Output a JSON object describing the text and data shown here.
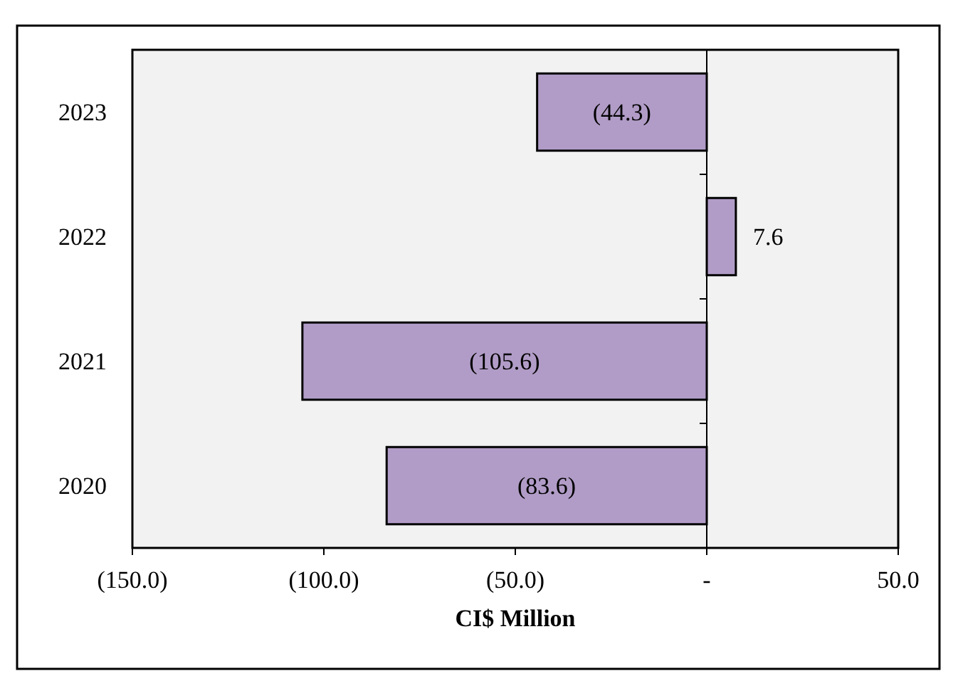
{
  "chart_data": {
    "type": "bar",
    "orientation": "horizontal",
    "xlabel": "CI$ Million",
    "categories": [
      "2023",
      "2022",
      "2021",
      "2020"
    ],
    "values": [
      -44.3,
      7.6,
      -105.6,
      -83.6
    ],
    "value_labels": [
      "(44.3)",
      "7.6",
      "(105.6)",
      "(83.6)"
    ],
    "color": "#b19cc7",
    "xlim": [
      -150,
      50
    ],
    "xticks": [
      {
        "value": -150,
        "label": "(150.0)"
      },
      {
        "value": -100,
        "label": "(100.0)"
      },
      {
        "value": -50,
        "label": "(50.0)"
      },
      {
        "value": 0,
        "label": "-"
      },
      {
        "value": 50,
        "label": "50.0"
      }
    ]
  }
}
